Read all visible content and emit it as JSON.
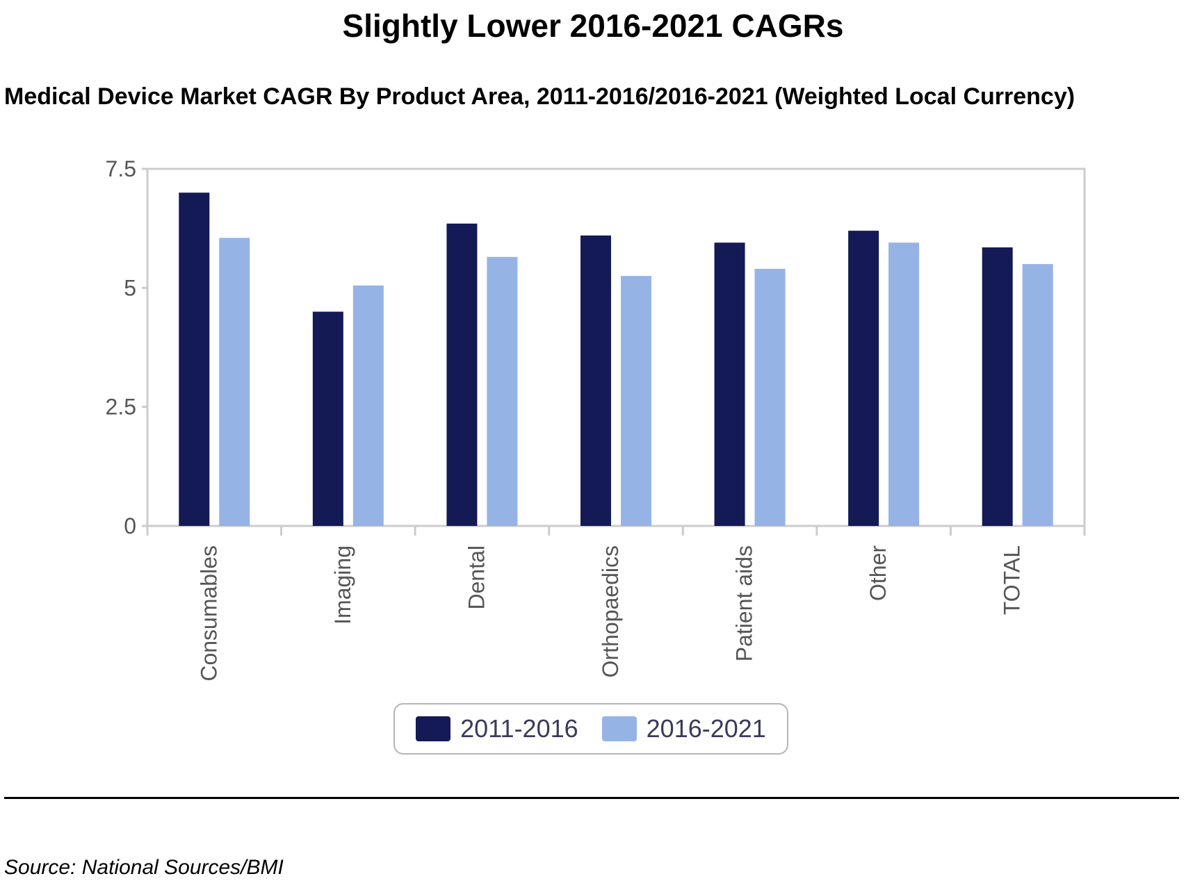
{
  "header": {
    "title": "Slightly Lower 2016-2021 CAGRs",
    "subtitle": "Medical Device Market CAGR By Product Area, 2011-2016/2016-2021 (Weighted Local Currency)"
  },
  "footer": {
    "source": "Source: National Sources/BMI"
  },
  "colors": {
    "series_1": "#141a55",
    "series_2": "#95b3e5",
    "axis": "#cccccc",
    "tick_text": "#555555"
  },
  "chart_data": {
    "type": "bar",
    "title": "Slightly Lower 2016-2021 CAGRs",
    "subtitle": "Medical Device Market CAGR By Product Area, 2011-2016/2016-2021 (Weighted Local Currency)",
    "xlabel": "",
    "ylabel": "",
    "ylim": [
      0,
      7.5
    ],
    "yticks": [
      0,
      2.5,
      5,
      7.5
    ],
    "ytick_labels": [
      "0",
      "2.5",
      "5",
      "7.5"
    ],
    "categories": [
      "Consumables",
      "Imaging",
      "Dental",
      "Orthopaedics",
      "Patient aids",
      "Other",
      "TOTAL"
    ],
    "series": [
      {
        "name": "2011-2016",
        "values": [
          7.0,
          4.5,
          6.35,
          6.1,
          5.95,
          6.2,
          5.85
        ]
      },
      {
        "name": "2016-2021",
        "values": [
          6.05,
          5.05,
          5.65,
          5.25,
          5.4,
          5.95,
          5.5
        ]
      }
    ],
    "legend": "bottom-center",
    "grid": false
  }
}
